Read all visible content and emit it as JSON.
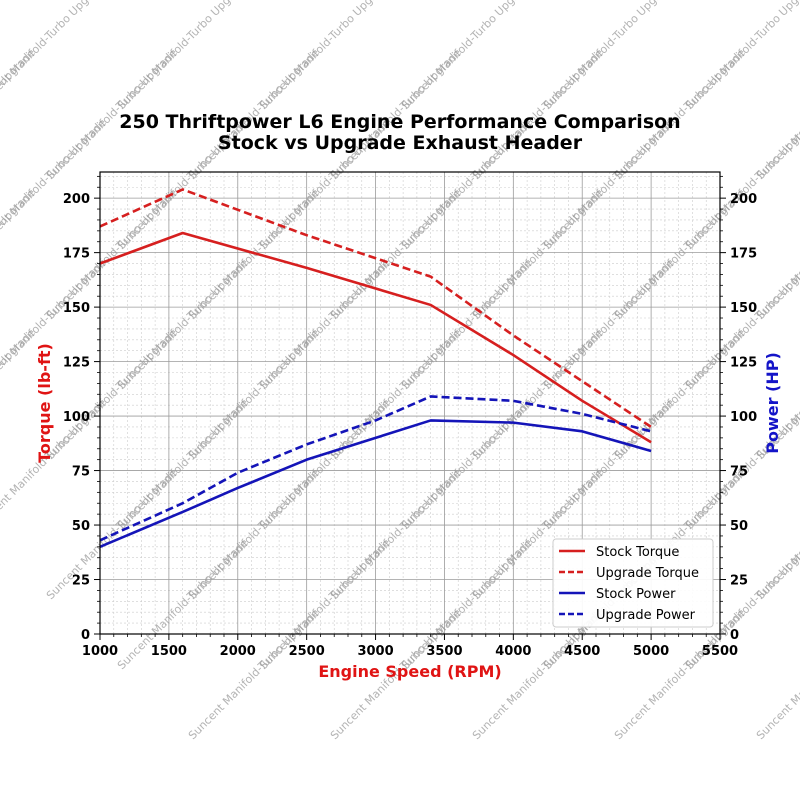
{
  "chart_data": {
    "type": "line",
    "title": "250 Thriftpower L6 Engine Performance Comparison",
    "subtitle": "Stock vs Upgrade Exhaust Header",
    "xlabel": "Engine Speed (RPM)",
    "ylabel_left": "Torque (lb-ft)",
    "ylabel_right": "Power (HP)",
    "xlim": [
      1000,
      5500
    ],
    "ylim": [
      0,
      212
    ],
    "x_ticks": [
      "1000",
      "1500",
      "2000",
      "2500",
      "3000",
      "3500",
      "4000",
      "4500",
      "5000",
      "5500"
    ],
    "y_ticks": [
      "0",
      "25",
      "50",
      "75",
      "100",
      "125",
      "150",
      "175",
      "200"
    ],
    "grid": true,
    "legend_position": "lower-right",
    "series": [
      {
        "name": "Stock Torque",
        "axis": "left",
        "color": "#d61f1f",
        "dash": "solid",
        "x": [
          1000,
          1600,
          2500,
          3400,
          4000,
          4500,
          5000
        ],
        "y": [
          170,
          184,
          168,
          151,
          128,
          107,
          88
        ]
      },
      {
        "name": "Upgrade Torque",
        "axis": "left",
        "color": "#d61f1f",
        "dash": "dashed",
        "x": [
          1000,
          1600,
          2500,
          3400,
          4000,
          4500,
          5000
        ],
        "y": [
          187,
          204,
          183,
          164,
          137,
          116,
          95
        ]
      },
      {
        "name": "Stock Power",
        "axis": "right",
        "color": "#1414b8",
        "dash": "solid",
        "x": [
          1000,
          1600,
          2000,
          2500,
          3000,
          3400,
          4000,
          4500,
          5000
        ],
        "y": [
          40,
          56,
          67,
          80,
          90,
          98,
          97,
          93,
          84
        ]
      },
      {
        "name": "Upgrade Power",
        "axis": "right",
        "color": "#1414b8",
        "dash": "dashed",
        "x": [
          1000,
          1600,
          2000,
          2500,
          3000,
          3400,
          4000,
          4500,
          5000
        ],
        "y": [
          43,
          60,
          74,
          87,
          98,
          109,
          107,
          101,
          93
        ]
      }
    ],
    "watermark_text": "Suncent Manifold-Turbo Upgrade",
    "colors": {
      "torque_axis": "#e01414",
      "power_axis": "#1414c8"
    }
  }
}
